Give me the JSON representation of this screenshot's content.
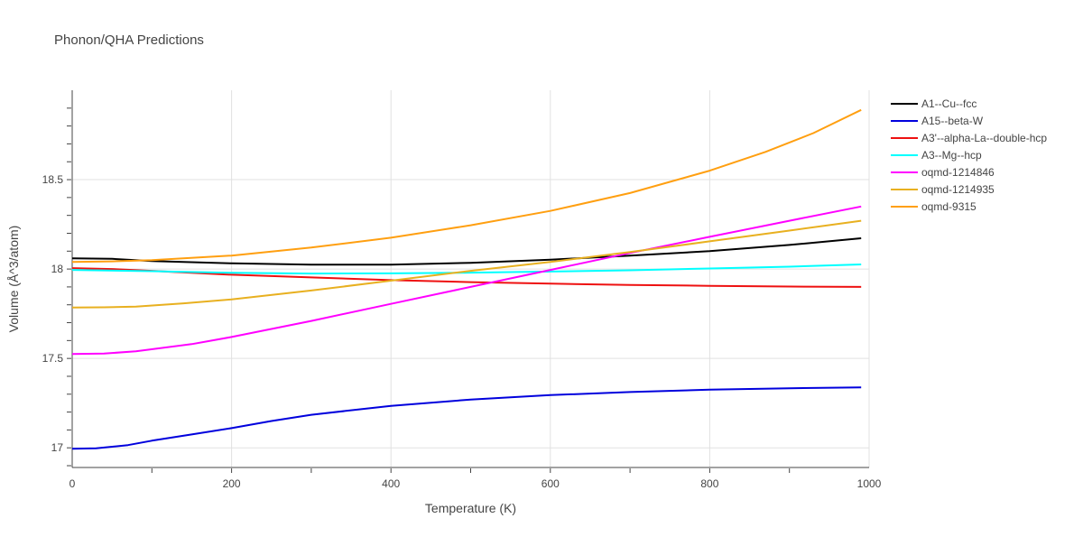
{
  "chart_data": {
    "type": "line",
    "title": "Phonon/QHA Predictions",
    "xlabel": "Temperature (K)",
    "ylabel": "Volume (Å^3/atom)",
    "xlim": [
      0,
      1000
    ],
    "ylim": [
      16.89,
      19.0
    ],
    "xticks": [
      0,
      200,
      400,
      600,
      800,
      1000
    ],
    "yticks": [
      17,
      17.5,
      18,
      18.5
    ],
    "ytick_labels": [
      "17",
      "17.5",
      "18",
      "18.5"
    ],
    "grid": true,
    "legend_position": "right",
    "series": [
      {
        "name": "A1--Cu--fcc",
        "color": "#000000",
        "x": [
          0,
          50,
          100,
          200,
          300,
          400,
          500,
          600,
          700,
          800,
          900,
          990
        ],
        "y": [
          18.06,
          18.057,
          18.045,
          18.032,
          18.024,
          18.025,
          18.035,
          18.052,
          18.075,
          18.1,
          18.135,
          18.172
        ]
      },
      {
        "name": "A15--beta-W",
        "color": "#0000dd",
        "x": [
          0,
          30,
          70,
          100,
          150,
          200,
          250,
          300,
          400,
          500,
          600,
          700,
          800,
          900,
          990
        ],
        "y": [
          16.995,
          16.997,
          17.015,
          17.04,
          17.075,
          17.11,
          17.15,
          17.185,
          17.235,
          17.27,
          17.295,
          17.312,
          17.325,
          17.333,
          17.338
        ]
      },
      {
        "name": "A3'--alpha-La--double-hcp",
        "color": "#ee1111",
        "x": [
          0,
          50,
          100,
          200,
          300,
          400,
          500,
          600,
          700,
          800,
          900,
          990
        ],
        "y": [
          18.005,
          18.0,
          17.99,
          17.968,
          17.953,
          17.938,
          17.927,
          17.918,
          17.911,
          17.906,
          17.902,
          17.9
        ]
      },
      {
        "name": "A3--Mg--hcp",
        "color": "#00ffff",
        "x": [
          0,
          100,
          200,
          300,
          400,
          500,
          600,
          700,
          800,
          900,
          990
        ],
        "y": [
          17.995,
          17.988,
          17.979,
          17.975,
          17.976,
          17.98,
          17.986,
          17.993,
          18.003,
          18.013,
          18.026
        ]
      },
      {
        "name": "oqmd-1214846",
        "color": "#ff00ff",
        "x": [
          0,
          40,
          80,
          150,
          200,
          300,
          400,
          500,
          600,
          700,
          800,
          900,
          990
        ],
        "y": [
          17.525,
          17.527,
          17.54,
          17.58,
          17.62,
          17.71,
          17.805,
          17.9,
          17.995,
          18.09,
          18.18,
          18.27,
          18.35
        ]
      },
      {
        "name": "oqmd-1214935",
        "color": "#e8b020",
        "x": [
          0,
          40,
          80,
          140,
          200,
          300,
          400,
          500,
          600,
          700,
          800,
          900,
          990
        ],
        "y": [
          17.785,
          17.786,
          17.79,
          17.808,
          17.83,
          17.88,
          17.935,
          17.99,
          18.04,
          18.095,
          18.155,
          18.215,
          18.27
        ]
      },
      {
        "name": "oqmd-9315",
        "color": "#ff9f10",
        "x": [
          0,
          50,
          100,
          200,
          300,
          400,
          500,
          600,
          700,
          800,
          870,
          930,
          990
        ],
        "y": [
          18.04,
          18.043,
          18.05,
          18.075,
          18.12,
          18.175,
          18.245,
          18.325,
          18.425,
          18.55,
          18.655,
          18.76,
          18.89
        ]
      }
    ]
  }
}
